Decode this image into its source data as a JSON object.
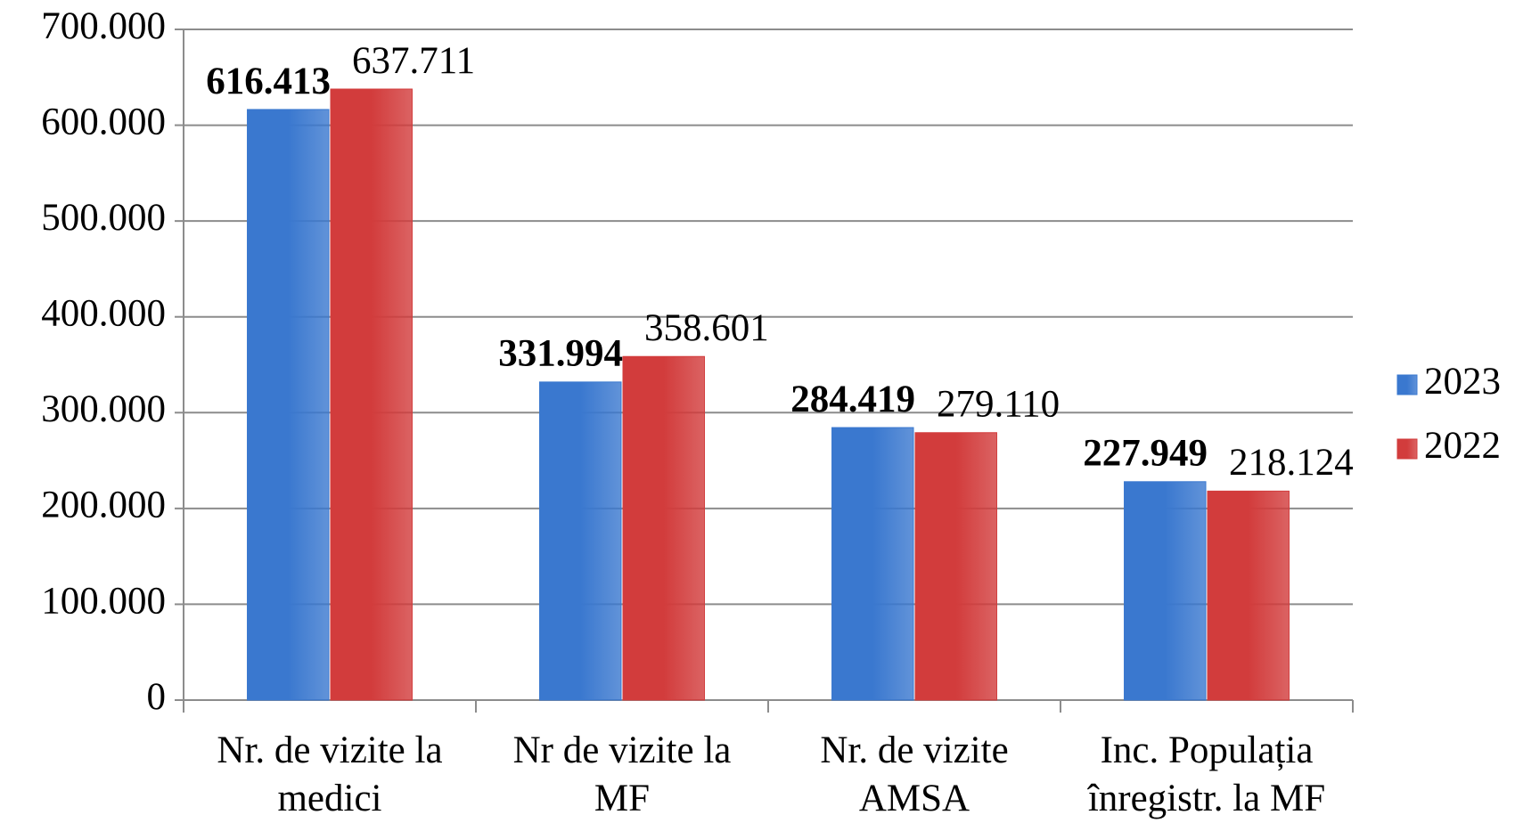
{
  "chart_data": {
    "type": "bar",
    "categories": [
      [
        "Nr. de vizite la",
        "medici"
      ],
      [
        "Nr de vizite la",
        "MF"
      ],
      [
        "Nr. de vizite",
        "AMSA"
      ],
      [
        "Inc. Populația",
        "înregistr. la MF"
      ]
    ],
    "series": [
      {
        "name": "2023",
        "color": "#3a78cf",
        "values": [
          616413,
          331994,
          284419,
          227949
        ],
        "value_labels": [
          "616.413",
          "331.994",
          "284.419",
          "227.949"
        ]
      },
      {
        "name": "2022",
        "color": "#d23c3c",
        "values": [
          637711,
          358601,
          279110,
          218124
        ],
        "value_labels": [
          "637.711",
          "358.601",
          "279.110",
          "218.124"
        ]
      }
    ],
    "ylim": [
      0,
      700000
    ],
    "yticks": [
      0,
      {
        "value": 100000,
        "label": "100.000"
      },
      {
        "value": 200000,
        "label": "200.000"
      },
      {
        "value": 300000,
        "label": "300.000"
      },
      {
        "value": 400000,
        "label": "400.000"
      },
      {
        "value": 500000,
        "label": "500.000"
      },
      {
        "value": 600000,
        "label": "600.000"
      },
      {
        "value": 700000,
        "label": "700.000"
      }
    ],
    "grid": true,
    "legend": "right"
  }
}
